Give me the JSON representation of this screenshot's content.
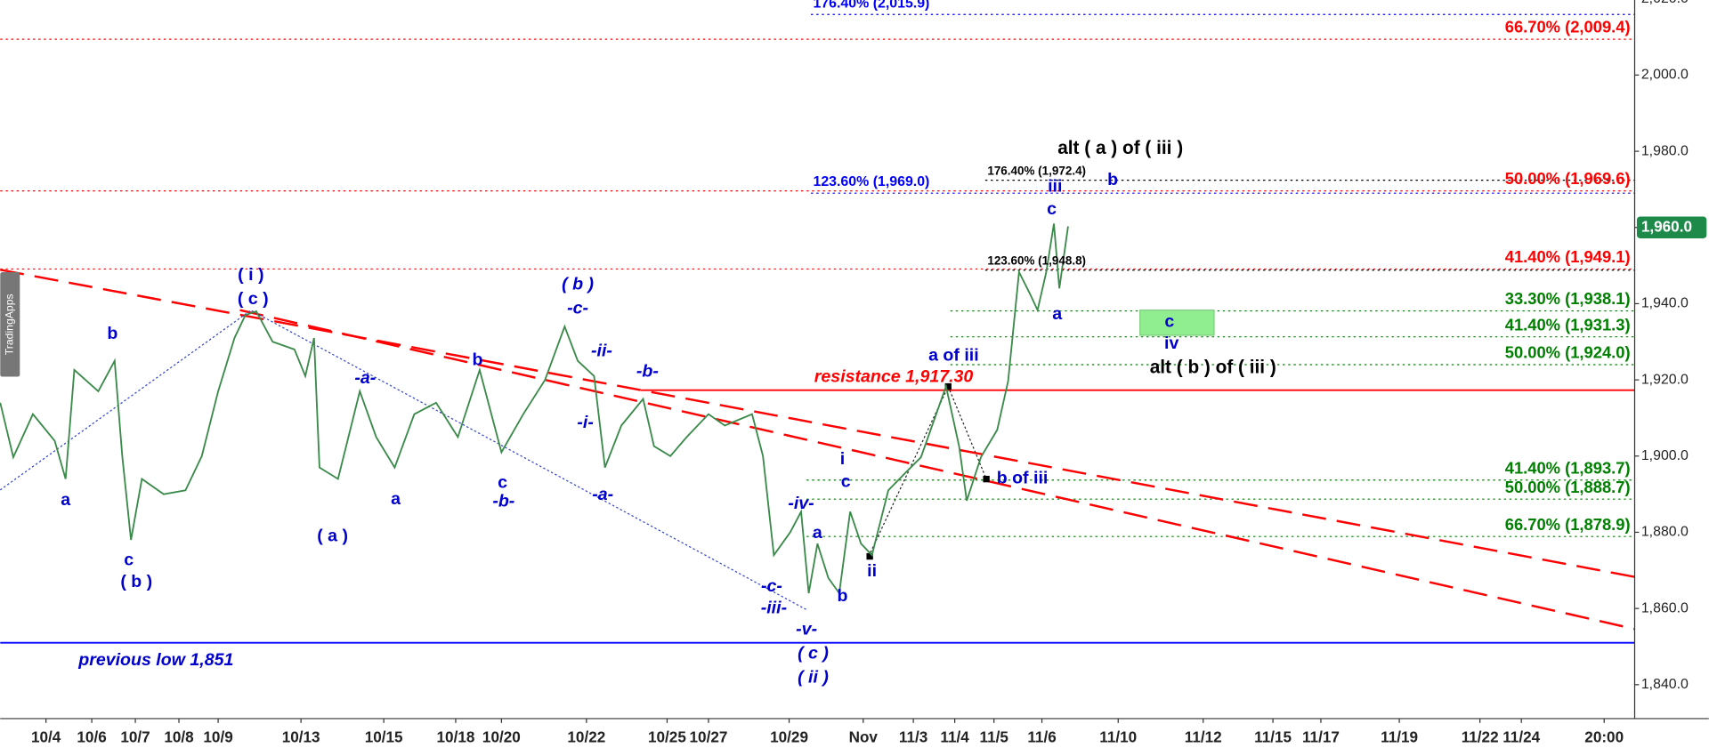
{
  "chart_data": {
    "type": "line",
    "watermark": "TradingApps",
    "x": [
      0,
      3,
      7.5,
      12.5,
      15,
      17,
      22.5,
      26.25,
      28,
      30,
      32.5,
      37.5,
      42.5,
      46.25,
      50,
      53.75,
      56.25,
      58.75,
      62.5,
      67.5,
      70,
      72,
      73.25,
      77.5,
      82.5,
      86.25,
      90.5,
      95,
      100,
      105,
      110,
      115,
      120,
      125,
      129.5,
      132.5,
      136.25,
      138.75,
      142.5,
      147.5,
      150,
      153.75,
      157.5,
      162.5,
      166.25,
      172.5,
      175,
      177.5,
      181.25,
      183.75,
      185.5,
      187.5,
      190,
      192.5,
      195,
      197.5,
      200,
      203.75,
      207.5,
      211.25,
      217,
      220,
      221.75,
      225,
      228.75,
      231.25,
      233.75,
      236.25,
      238,
      240,
      241.75,
      243,
      245
    ],
    "series": [
      {
        "color": "#3a8a4a",
        "values": [
          1914,
          1899.7,
          1911,
          1904,
          1894,
          1922.6,
          1917,
          1925,
          1900,
          1878,
          1894,
          1890,
          1891,
          1900,
          1917,
          1931,
          1937,
          1938,
          1930,
          1928,
          1921,
          1931,
          1897,
          1894,
          1917,
          1905,
          1897,
          1911,
          1914,
          1905,
          1922.6,
          1901,
          1911,
          1920,
          1934,
          1925,
          1921,
          1897,
          1908,
          1915,
          1902.6,
          1900,
          1905,
          1911,
          1908,
          1911,
          1900,
          1874,
          1880,
          1885.4,
          1864,
          1877,
          1868,
          1864,
          1885.4,
          1877,
          1874,
          1891,
          1895.4,
          1899.7,
          1918.3,
          1902.6,
          1888.3,
          1899.7,
          1906.9,
          1919.7,
          1948.3,
          1942.6,
          1938.3,
          1948.3,
          1961,
          1944,
          1960.3
        ]
      }
    ],
    "last_price": 1960,
    "last_price_label": "1,960.0",
    "last_price_color": "#1e8a4a",
    "xlim": [
      0,
      375
    ],
    "xticks": [
      {
        "value": 10.5,
        "label": "10/4"
      },
      {
        "value": 21,
        "label": "10/6"
      },
      {
        "value": 31,
        "label": "10/7"
      },
      {
        "value": 41,
        "label": "10/8"
      },
      {
        "value": 50,
        "label": "10/9"
      },
      {
        "value": 69,
        "label": "10/13"
      },
      {
        "value": 88,
        "label": "10/15"
      },
      {
        "value": 104.5,
        "label": "10/18"
      },
      {
        "value": 115,
        "label": "10/20"
      },
      {
        "value": 134.5,
        "label": "10/22"
      },
      {
        "value": 153,
        "label": "10/25"
      },
      {
        "value": 162.5,
        "label": "10/27"
      },
      {
        "value": 181,
        "label": "10/29"
      },
      {
        "value": 198,
        "label": "Nov"
      },
      {
        "value": 209.5,
        "label": "11/3"
      },
      {
        "value": 219,
        "label": "11/4"
      },
      {
        "value": 228,
        "label": "11/5"
      },
      {
        "value": 239,
        "label": "11/6"
      },
      {
        "value": 256.5,
        "label": "11/10"
      },
      {
        "value": 276,
        "label": "11/12"
      },
      {
        "value": 292,
        "label": "11/15"
      },
      {
        "value": 303,
        "label": "11/17"
      },
      {
        "value": 321,
        "label": "11/19"
      },
      {
        "value": 339.5,
        "label": "11/22"
      },
      {
        "value": 349,
        "label": "11/24"
      },
      {
        "value": 368,
        "label": "20:00"
      }
    ],
    "ylim": [
      1831.1,
      2019.7
    ],
    "yticks": [
      {
        "value": 1840,
        "label": "1,840.0"
      },
      {
        "value": 1860,
        "label": "1,860.0"
      },
      {
        "value": 1880,
        "label": "1,880.0"
      },
      {
        "value": 1900,
        "label": "1,900.0"
      },
      {
        "value": 1920,
        "label": "1,920.0"
      },
      {
        "value": 1940,
        "label": "1,940.0"
      },
      {
        "value": 1960,
        "label": "1,960.0"
      },
      {
        "value": 1980,
        "label": "1,980.0"
      },
      {
        "value": 2000,
        "label": "2,000.0"
      },
      {
        "value": 2020,
        "label": "2,020.0"
      }
    ],
    "levels": [
      {
        "value": 2015.9,
        "label": "176.40% (2,015.9)",
        "color": "#0000ff",
        "style": "dotted",
        "from": 186,
        "label_at": "start"
      },
      {
        "value": 2009.4,
        "label": "66.70% (2,009.4)",
        "color": "#ff0000",
        "style": "dotted",
        "from": 0,
        "label_at": "end"
      },
      {
        "value": 1972.4,
        "label": "176.40% (1,972.4)",
        "color": "#000000",
        "style": "dotted",
        "from": 226,
        "label_at": "start"
      },
      {
        "value": 1969.6,
        "label": "50.00% (1,969.6)",
        "color": "#ff0000",
        "style": "dotted",
        "from": 0,
        "label_at": "end"
      },
      {
        "value": 1969.0,
        "label": "123.60% (1,969.0)",
        "color": "#0000ff",
        "style": "dotted",
        "from": 186,
        "label_at": "start"
      },
      {
        "value": 1949.1,
        "label": "41.40% (1,949.1)",
        "color": "#ff0000",
        "style": "dotted",
        "from": 0,
        "label_at": "end"
      },
      {
        "value": 1948.8,
        "label": "123.60% (1,948.8)",
        "color": "#000000",
        "style": "dotted",
        "from": 226,
        "label_at": "start"
      },
      {
        "value": 1938.1,
        "label": "33.30% (1,938.1)",
        "color": "#008000",
        "style": "dotted",
        "from": 218,
        "label_at": "end"
      },
      {
        "value": 1931.3,
        "label": "41.40% (1,931.3)",
        "color": "#008000",
        "style": "dotted",
        "from": 218,
        "label_at": "end"
      },
      {
        "value": 1924.0,
        "label": "50.00% (1,924.0)",
        "color": "#008000",
        "style": "dotted",
        "from": 218,
        "label_at": "end"
      },
      {
        "value": 1917.3,
        "color": "#ff0000",
        "style": "solid",
        "from": 147
      },
      {
        "value": 1893.7,
        "label": "41.40% (1,893.7)",
        "color": "#008000",
        "style": "dotted",
        "from": 185,
        "label_at": "end"
      },
      {
        "value": 1888.7,
        "label": "50.00% (1,888.7)",
        "color": "#008000",
        "style": "dotted",
        "from": 185,
        "label_at": "end"
      },
      {
        "value": 1878.9,
        "label": "66.70% (1,878.9)",
        "color": "#008000",
        "style": "dotted",
        "from": 185,
        "label_at": "end"
      },
      {
        "value": 1851,
        "color": "#0000ff",
        "style": "solid",
        "from": 0
      }
    ],
    "trendlines": [
      {
        "color": "#ff0000",
        "x": [
          0,
          375
        ],
        "values": [
          1948.9,
          1868.3
        ]
      },
      {
        "color": "#ff0000",
        "x": [
          55,
          375
        ],
        "values": [
          1938.3,
          1854.6
        ]
      }
    ],
    "zone": {
      "x": [
        261.5,
        278.5
      ],
      "values": [
        1938.3,
        1931.7
      ],
      "color": "#90ee90"
    },
    "annotations": [
      {
        "text": "a",
        "x": 15,
        "y": 1888.3,
        "color": "#0000cc"
      },
      {
        "text": "b",
        "x": 25.75,
        "y": 1932,
        "color": "#0000cc"
      },
      {
        "text": "c",
        "x": 29.5,
        "y": 1872.6,
        "color": "#0000cc"
      },
      {
        "text": "( b )",
        "x": 31.25,
        "y": 1866.9,
        "color": "#0000cc"
      },
      {
        "text": "( i )",
        "x": 57.5,
        "y": 1947.4,
        "color": "#0000cc"
      },
      {
        "text": "( c )",
        "x": 58,
        "y": 1941.1,
        "color": "#0000cc"
      },
      {
        "text": "( a )",
        "x": 76.25,
        "y": 1878.9,
        "color": "#0000cc"
      },
      {
        "text": "a",
        "x": 90.75,
        "y": 1888.6,
        "color": "#0000cc"
      },
      {
        "text": "-a-",
        "x": 83.75,
        "y": 1920.3,
        "color": "#0000cc",
        "italic": true
      },
      {
        "text": "b",
        "x": 109.5,
        "y": 1925.1,
        "color": "#0000cc"
      },
      {
        "text": "c",
        "x": 115.25,
        "y": 1892.9,
        "color": "#0000cc"
      },
      {
        "text": "-b-",
        "x": 115.5,
        "y": 1888,
        "color": "#0000cc",
        "italic": true
      },
      {
        "text": "( b )",
        "x": 132.5,
        "y": 1944.9,
        "color": "#0000cc",
        "italic": true
      },
      {
        "text": "-c-",
        "x": 132.5,
        "y": 1938.6,
        "color": "#0000cc",
        "italic": true
      },
      {
        "text": "-ii-",
        "x": 138,
        "y": 1927.4,
        "color": "#0000cc",
        "italic": true
      },
      {
        "text": "-i-",
        "x": 134.25,
        "y": 1908.6,
        "color": "#0000cc",
        "italic": true
      },
      {
        "text": "-b-",
        "x": 148.5,
        "y": 1922,
        "color": "#0000cc",
        "italic": true
      },
      {
        "text": "-a-",
        "x": 138.25,
        "y": 1889.7,
        "color": "#0000cc",
        "italic": true
      },
      {
        "text": "-iv-",
        "x": 183.75,
        "y": 1887.4,
        "color": "#0000cc",
        "italic": true
      },
      {
        "text": "-c-",
        "x": 177,
        "y": 1865.7,
        "color": "#0000cc",
        "italic": true
      },
      {
        "text": "-iii-",
        "x": 177.5,
        "y": 1860,
        "color": "#0000cc",
        "italic": true
      },
      {
        "text": "-v-",
        "x": 185,
        "y": 1854.3,
        "color": "#0000cc",
        "italic": true
      },
      {
        "text": "( c )",
        "x": 186.5,
        "y": 1848,
        "color": "#0000cc",
        "italic": true
      },
      {
        "text": "( ii )",
        "x": 186.5,
        "y": 1841.7,
        "color": "#0000cc",
        "italic": true
      },
      {
        "text": "a",
        "x": 187.5,
        "y": 1879.7,
        "color": "#0000cc"
      },
      {
        "text": "b",
        "x": 193.25,
        "y": 1863.1,
        "color": "#0000cc"
      },
      {
        "text": "i",
        "x": 193.25,
        "y": 1899.1,
        "color": "#0000cc"
      },
      {
        "text": "c",
        "x": 194,
        "y": 1893.1,
        "color": "#0000cc"
      },
      {
        "text": "ii",
        "x": 200,
        "y": 1869.7,
        "color": "#0000cc"
      },
      {
        "text": "a of iii",
        "x": 218.75,
        "y": 1926.3,
        "color": "#0000cc"
      },
      {
        "text": "b of iii",
        "x": 234.5,
        "y": 1894,
        "color": "#0000cc"
      },
      {
        "text": "c",
        "x": 241.25,
        "y": 1964.6,
        "color": "#0000cc"
      },
      {
        "text": "iii",
        "x": 242,
        "y": 1970.6,
        "color": "#0000cc"
      },
      {
        "text": "a",
        "x": 242.5,
        "y": 1937.1,
        "color": "#0000cc"
      },
      {
        "text": "b",
        "x": 255.25,
        "y": 1972.3,
        "color": "#0000cc"
      },
      {
        "text": "c",
        "x": 268.25,
        "y": 1935.1,
        "color": "#0000cc"
      },
      {
        "text": "iv",
        "x": 268.75,
        "y": 1929.4,
        "color": "#0000cc"
      },
      {
        "text": "alt ( a ) of ( iii )",
        "x": 257,
        "y": 1980.6,
        "color": "#000000"
      },
      {
        "text": "alt ( b ) of ( iii )",
        "x": 278.25,
        "y": 1923.1,
        "color": "#000000"
      },
      {
        "text": "resistance 1,917.30",
        "x": 205,
        "y": 1920.6,
        "color": "#ff0000",
        "italic": true
      },
      {
        "text": "previous low 1,851",
        "x": 35.75,
        "y": 1846.3,
        "color": "#0000cc",
        "italic": true
      }
    ]
  }
}
